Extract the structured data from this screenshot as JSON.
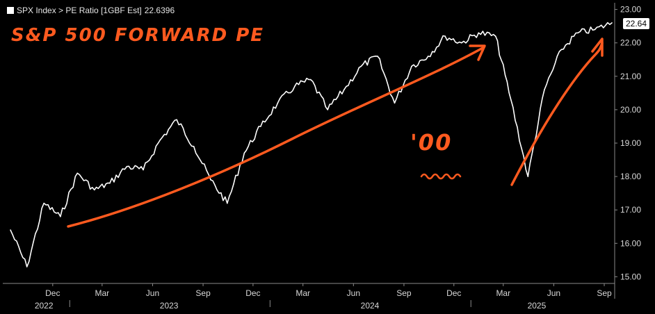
{
  "legend": {
    "swatch_color": "#ffffff",
    "label": "SPX Index > PE Ratio [1GBF Est]",
    "value": "22.6396"
  },
  "last_value_badge": "22.64",
  "annotations": {
    "title": "S&P 500 FORWARD PE",
    "mark": "'00",
    "color": "#ff5a1f"
  },
  "chart_data": {
    "type": "line",
    "title": "",
    "xlabel": "",
    "ylabel": "",
    "ylim": [
      14.8,
      23.2
    ],
    "y_ticks": [
      "15.00",
      "16.00",
      "17.00",
      "18.00",
      "19.00",
      "20.00",
      "21.00",
      "22.00",
      "23.00"
    ],
    "x_month_ticks": [
      "Dec",
      "Mar",
      "Jun",
      "Sep",
      "Dec",
      "Mar",
      "Jun",
      "Sep",
      "Dec",
      "Mar",
      "Jun",
      "Sep"
    ],
    "x_year_labels": [
      "2022",
      "2023",
      "2024",
      "2025"
    ],
    "grid": false,
    "legend_position": "top-left",
    "series": [
      {
        "name": "SPX Index > PE Ratio [1GBF Est]",
        "color": "#ffffff",
        "x": [
          "2022-09",
          "2022-10",
          "2022-11",
          "2022-12",
          "2023-01",
          "2023-02",
          "2023-03",
          "2023-04",
          "2023-05",
          "2023-06",
          "2023-07",
          "2023-08",
          "2023-09",
          "2023-10",
          "2023-11",
          "2023-12",
          "2024-01",
          "2024-02",
          "2024-03",
          "2024-04",
          "2024-05",
          "2024-06",
          "2024-07",
          "2024-08",
          "2024-09",
          "2024-10",
          "2024-11",
          "2024-12",
          "2025-01",
          "2025-02",
          "2025-03",
          "2025-04",
          "2025-05",
          "2025-06",
          "2025-07",
          "2025-08",
          "2025-09"
        ],
        "values": [
          16.4,
          15.3,
          17.2,
          16.8,
          18.1,
          17.6,
          17.8,
          18.3,
          18.2,
          19.1,
          19.7,
          18.9,
          17.9,
          17.2,
          18.7,
          19.5,
          20.2,
          20.7,
          20.9,
          20.0,
          20.6,
          21.3,
          21.6,
          20.2,
          21.3,
          21.6,
          22.2,
          22.0,
          22.3,
          22.2,
          20.3,
          18.0,
          20.6,
          21.8,
          22.3,
          22.4,
          22.6
        ]
      }
    ]
  }
}
